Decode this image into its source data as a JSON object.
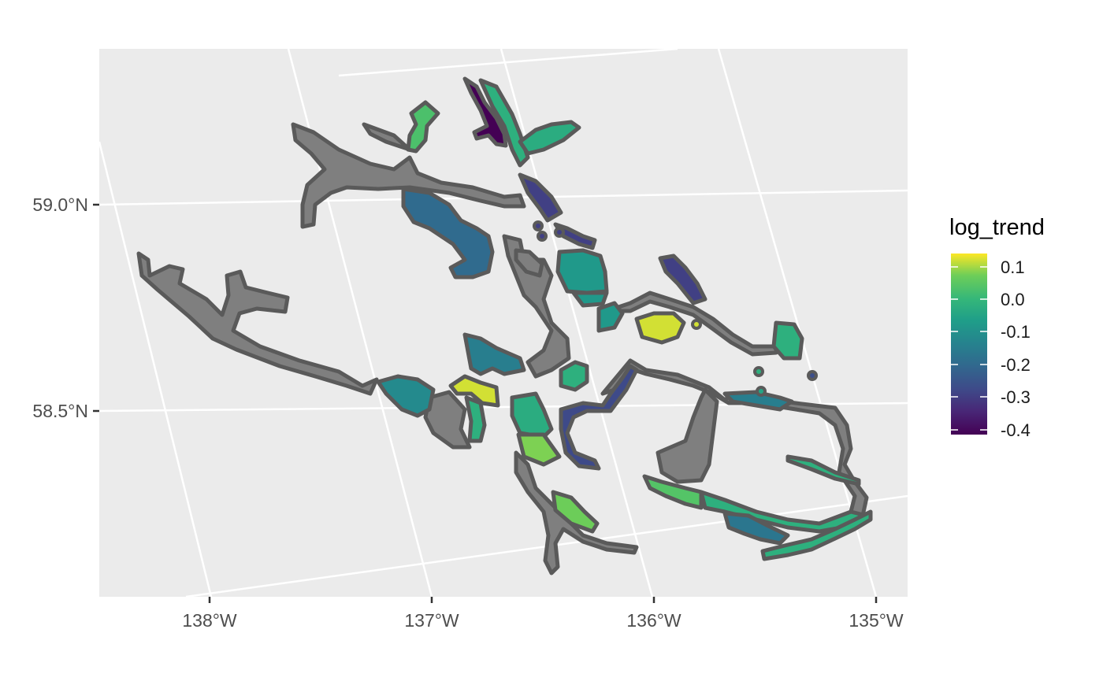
{
  "map": {
    "x_ticks": [
      "138°W",
      "137°W",
      "136°W",
      "135°W"
    ],
    "y_ticks": [
      "59.0°N",
      "58.5°N"
    ],
    "background_color": "#ebebeb",
    "grid_color": "#ffffff",
    "outline_color": "#5a5a5a",
    "na_fill_color": "#7f7f7f"
  },
  "legend": {
    "title": "log_trend",
    "labels": [
      "0.1",
      "0.0",
      "-0.1",
      "-0.2",
      "-0.3",
      "-0.4"
    ],
    "colormap": "viridis",
    "range": [
      -0.42,
      0.14
    ]
  }
}
